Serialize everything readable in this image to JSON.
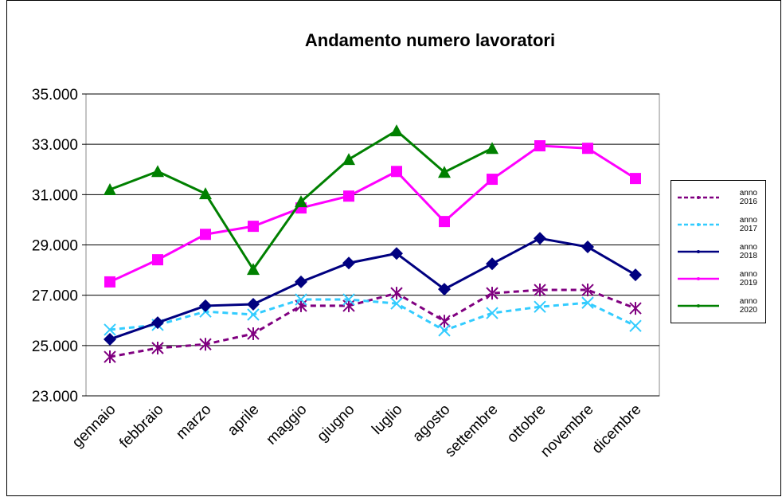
{
  "chart_data": {
    "type": "line",
    "title": "Andamento numero lavoratori",
    "categories": [
      "gennaio",
      "febbraio",
      "marzo",
      "aprile",
      "maggio",
      "giugno",
      "luglio",
      "agosto",
      "settembre",
      "ottobre",
      "novembre",
      "dicembre"
    ],
    "ylim": [
      23000,
      35000
    ],
    "yticks": [
      {
        "value": 23000,
        "label": "23.000"
      },
      {
        "value": 25000,
        "label": "25.000"
      },
      {
        "value": 27000,
        "label": "27.000"
      },
      {
        "value": 29000,
        "label": "29.000"
      },
      {
        "value": 31000,
        "label": "31.000"
      },
      {
        "value": 33000,
        "label": "33.000"
      },
      {
        "value": 35000,
        "label": "35.000"
      }
    ],
    "grid": true,
    "legend": "right",
    "series": [
      {
        "name": "anno 2016",
        "color": "#800080",
        "dash": true,
        "marker": "asterisk",
        "values": [
          24550,
          24900,
          25050,
          25470,
          26580,
          26580,
          27080,
          25970,
          27080,
          27210,
          27210,
          26480
        ]
      },
      {
        "name": "anno 2017",
        "color": "#33ccff",
        "dash": true,
        "marker": "x",
        "values": [
          25630,
          25820,
          26350,
          26230,
          26830,
          26830,
          26670,
          25600,
          26290,
          26540,
          26700,
          25780
        ]
      },
      {
        "name": "anno 2018",
        "color": "#000080",
        "dash": false,
        "marker": "diamond",
        "values": [
          25250,
          25910,
          26580,
          26640,
          27530,
          28280,
          28660,
          27240,
          28250,
          29260,
          28920,
          27810
        ]
      },
      {
        "name": "anno 2019",
        "color": "#ff00ff",
        "dash": false,
        "marker": "square",
        "values": [
          27530,
          28410,
          29420,
          29740,
          30470,
          30940,
          31920,
          29930,
          31610,
          32940,
          32840,
          31640
        ]
      },
      {
        "name": "anno 2020",
        "color": "#008000",
        "dash": false,
        "marker": "triangle",
        "values": [
          31200,
          31920,
          31040,
          28030,
          30720,
          32400,
          33540,
          31890,
          32840,
          null,
          null,
          null
        ]
      }
    ]
  }
}
